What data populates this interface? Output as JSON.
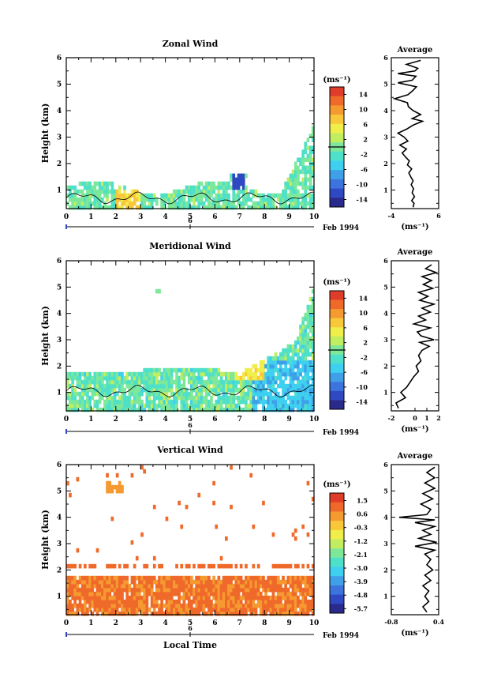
{
  "chart_data": [
    {
      "type": "heatmap",
      "title": "Zonal Wind",
      "xlabel": "",
      "ylabel": "Height (km)",
      "xlim": [
        0,
        10
      ],
      "ylim": [
        0.3,
        6
      ],
      "xticks": [
        0,
        1,
        2,
        3,
        4,
        5,
        6,
        7,
        8,
        9,
        10
      ],
      "yticks": [
        1,
        2,
        3,
        4,
        5,
        6
      ],
      "date_axis": {
        "tick": "6",
        "label": "Feb 1994"
      },
      "colorbar": {
        "unit": "(ms⁻¹)",
        "ticks": [
          14,
          10,
          6,
          2,
          -2,
          -6,
          -10,
          -14
        ],
        "range": [
          -16,
          16
        ]
      },
      "profile": {
        "title": "Average",
        "xlabel": "(ms⁻¹)",
        "xlim": [
          -4,
          6
        ],
        "xticks": [
          -4,
          6
        ],
        "points": [
          [
            0.6,
            0.35
          ],
          [
            0.8,
            0.5
          ],
          [
            0.3,
            0.6
          ],
          [
            0.9,
            0.75
          ],
          [
            0.4,
            0.9
          ],
          [
            0.7,
            1.05
          ],
          [
            0.2,
            1.2
          ],
          [
            0.6,
            1.35
          ],
          [
            0.1,
            1.5
          ],
          [
            -0.3,
            1.65
          ],
          [
            0.3,
            1.8
          ],
          [
            -0.6,
            1.95
          ],
          [
            -0.2,
            2.1
          ],
          [
            -1.0,
            2.25
          ],
          [
            -1.7,
            2.4
          ],
          [
            -0.8,
            2.55
          ],
          [
            -2.2,
            2.7
          ],
          [
            -0.5,
            2.85
          ],
          [
            -1.3,
            3.0
          ],
          [
            -2.6,
            3.15
          ],
          [
            -0.8,
            3.3
          ],
          [
            0.6,
            3.45
          ],
          [
            2.6,
            3.6
          ],
          [
            0.4,
            3.7
          ],
          [
            2.2,
            3.85
          ],
          [
            0.6,
            4.0
          ],
          [
            -0.4,
            4.15
          ],
          [
            -0.6,
            4.3
          ],
          [
            -3.3,
            4.45
          ],
          [
            -0.5,
            4.6
          ],
          [
            0.5,
            4.75
          ],
          [
            1.3,
            4.9
          ],
          [
            -2.6,
            5.05
          ],
          [
            0.4,
            5.15
          ],
          [
            1.2,
            5.3
          ],
          [
            -2.6,
            5.4
          ],
          [
            1.0,
            5.5
          ],
          [
            1.6,
            5.6
          ],
          [
            -0.8,
            5.75
          ],
          [
            2.2,
            5.9
          ]
        ]
      }
    },
    {
      "type": "heatmap",
      "title": "Meridional Wind",
      "xlabel": "",
      "ylabel": "Height (km)",
      "xlim": [
        0,
        10
      ],
      "ylim": [
        0.3,
        6
      ],
      "xticks": [
        0,
        1,
        2,
        3,
        4,
        5,
        6,
        7,
        8,
        9,
        10
      ],
      "yticks": [
        1,
        2,
        3,
        4,
        5,
        6
      ],
      "date_axis": {
        "tick": "6",
        "label": "Feb 1994"
      },
      "colorbar": {
        "unit": "(ms⁻¹)",
        "ticks": [
          14,
          10,
          6,
          2,
          -2,
          -6,
          -10,
          -14
        ],
        "range": [
          -16,
          16
        ]
      },
      "profile": {
        "title": "Average",
        "xlabel": "(ms⁻¹)",
        "xlim": [
          -2,
          2
        ],
        "xticks": [
          -2,
          0,
          1,
          2
        ],
        "points": [
          [
            -1.4,
            0.4
          ],
          [
            -1.6,
            0.6
          ],
          [
            -0.8,
            0.8
          ],
          [
            -1.2,
            1.0
          ],
          [
            -0.7,
            1.2
          ],
          [
            -0.4,
            1.4
          ],
          [
            -0.1,
            1.6
          ],
          [
            0.3,
            1.8
          ],
          [
            0.1,
            2.0
          ],
          [
            0.5,
            2.2
          ],
          [
            0.3,
            2.4
          ],
          [
            0.6,
            2.6
          ],
          [
            1.2,
            2.75
          ],
          [
            0.4,
            2.9
          ],
          [
            1.6,
            3.0
          ],
          [
            0.5,
            3.15
          ],
          [
            0.2,
            3.3
          ],
          [
            1.3,
            3.45
          ],
          [
            -0.1,
            3.6
          ],
          [
            0.9,
            3.75
          ],
          [
            0.3,
            3.9
          ],
          [
            1.3,
            4.05
          ],
          [
            0.6,
            4.2
          ],
          [
            1.6,
            4.35
          ],
          [
            0.4,
            4.5
          ],
          [
            1.1,
            4.65
          ],
          [
            0.3,
            4.8
          ],
          [
            1.5,
            4.95
          ],
          [
            0.7,
            5.1
          ],
          [
            1.4,
            5.25
          ],
          [
            0.6,
            5.4
          ],
          [
            1.8,
            5.55
          ],
          [
            0.9,
            5.7
          ],
          [
            1.4,
            5.85
          ]
        ]
      }
    },
    {
      "type": "heatmap",
      "title": "Vertical Wind",
      "xlabel": "Local Time",
      "ylabel": "Height (km)",
      "xlim": [
        0,
        10
      ],
      "ylim": [
        0.3,
        6
      ],
      "xticks": [
        0,
        1,
        2,
        3,
        4,
        5,
        6,
        7,
        8,
        9,
        10
      ],
      "yticks": [
        1,
        2,
        3,
        4,
        5,
        6
      ],
      "date_axis": {
        "tick": "6",
        "label": "Feb 1994"
      },
      "colorbar": {
        "unit": "(ms⁻¹)",
        "ticks": [
          1.5,
          0.6,
          -0.3,
          -1.2,
          -2.1,
          -3.0,
          -3.9,
          -4.8,
          -5.7
        ],
        "tick_labels": [
          "1.5",
          "0.6",
          "-0.3",
          "-1.2",
          "-2.1",
          "-3.0",
          "-3.9",
          "-4.8",
          "-5.7"
        ],
        "range": [
          -6,
          2
        ]
      },
      "profile": {
        "title": "Average",
        "xlabel": "(ms⁻¹)",
        "xlim": [
          -0.8,
          0.4
        ],
        "xticks": [
          -0.8,
          0.4
        ],
        "points": [
          [
            0.1,
            0.4
          ],
          [
            0.0,
            0.6
          ],
          [
            0.15,
            0.8
          ],
          [
            0.05,
            1.0
          ],
          [
            0.15,
            1.2
          ],
          [
            0.0,
            1.4
          ],
          [
            0.2,
            1.6
          ],
          [
            0.05,
            1.8
          ],
          [
            0.25,
            2.0
          ],
          [
            0.1,
            2.2
          ],
          [
            0.2,
            2.4
          ],
          [
            0.05,
            2.6
          ],
          [
            0.3,
            2.75
          ],
          [
            -0.2,
            2.9
          ],
          [
            0.35,
            3.05
          ],
          [
            -0.1,
            3.2
          ],
          [
            0.2,
            3.35
          ],
          [
            0.0,
            3.5
          ],
          [
            0.3,
            3.65
          ],
          [
            -0.2,
            3.8
          ],
          [
            0.3,
            3.9
          ],
          [
            -0.6,
            4.0
          ],
          [
            0.1,
            4.1
          ],
          [
            0.2,
            4.3
          ],
          [
            -0.05,
            4.5
          ],
          [
            0.25,
            4.7
          ],
          [
            0.0,
            4.9
          ],
          [
            0.3,
            5.1
          ],
          [
            0.05,
            5.3
          ],
          [
            0.3,
            5.5
          ],
          [
            0.1,
            5.7
          ],
          [
            0.3,
            5.9
          ]
        ]
      }
    }
  ]
}
